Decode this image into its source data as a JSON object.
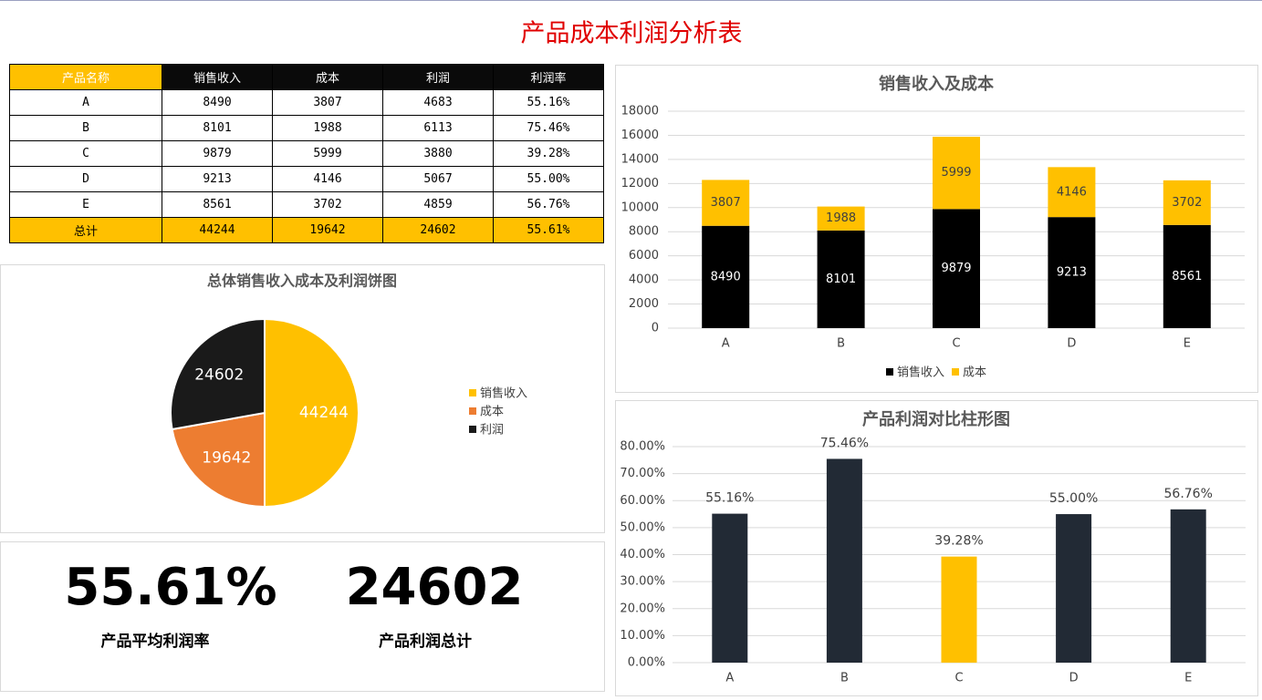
{
  "title": "产品成本利润分析表",
  "table": {
    "header": [
      "产品名称",
      "销售收入",
      "成本",
      "利润",
      "利润率"
    ],
    "rows": [
      [
        "A",
        8490,
        3807,
        4683,
        "55.16%"
      ],
      [
        "B",
        8101,
        1988,
        6113,
        "75.46%"
      ],
      [
        "C",
        9879,
        5999,
        3880,
        "39.28%"
      ],
      [
        "D",
        9213,
        4146,
        5067,
        "55.00%"
      ],
      [
        "E",
        8561,
        3702,
        4859,
        "56.76%"
      ]
    ],
    "total": [
      "总计",
      44244,
      19642,
      24602,
      "55.61%"
    ]
  },
  "kpis": [
    {
      "value": "55.61%",
      "label": "产品平均利润率"
    },
    {
      "value": "24602",
      "label": "产品利润总计"
    }
  ],
  "chart_data": [
    {
      "type": "pie",
      "title": "总体销售收入成本及利润饼图",
      "categories": [
        "销售收入",
        "成本",
        "利润"
      ],
      "values": [
        44244,
        19642,
        24602
      ],
      "colors": [
        "#ffc000",
        "#ed7d31",
        "#1a1a1a"
      ],
      "legend": "right"
    },
    {
      "type": "stacked_bar",
      "title": "销售收入及成本",
      "categories": [
        "A",
        "B",
        "C",
        "D",
        "E"
      ],
      "series": [
        {
          "name": "销售收入",
          "color": "#000000",
          "values": [
            8490,
            8101,
            9879,
            9213,
            8561
          ]
        },
        {
          "name": "成本",
          "color": "#ffc000",
          "values": [
            3807,
            1988,
            5999,
            4146,
            3702
          ]
        }
      ],
      "ylim": [
        0,
        18000
      ],
      "yticks": [
        0,
        2000,
        4000,
        6000,
        8000,
        10000,
        12000,
        14000,
        16000,
        18000
      ],
      "grid": true,
      "legend": "bottom"
    },
    {
      "type": "bar",
      "title": "产品利润对比柱形图",
      "categories": [
        "A",
        "B",
        "C",
        "D",
        "E"
      ],
      "values": [
        55.16,
        75.46,
        39.28,
        55.0,
        56.76
      ],
      "value_labels": [
        "55.16%",
        "75.46%",
        "39.28%",
        "55.00%",
        "56.76%"
      ],
      "colors": [
        "#222a35",
        "#222a35",
        "#ffc000",
        "#222a35",
        "#222a35"
      ],
      "ylim": [
        0,
        80
      ],
      "yticks": [
        {
          "value": 0,
          "label": "0.00%"
        },
        {
          "value": 10,
          "label": "10.00%"
        },
        {
          "value": 20,
          "label": "20.00%"
        },
        {
          "value": 30,
          "label": "30.00%"
        },
        {
          "value": 40,
          "label": "40.00%"
        },
        {
          "value": 50,
          "label": "50.00%"
        },
        {
          "value": 60,
          "label": "60.00%"
        },
        {
          "value": 70,
          "label": "70.00%"
        },
        {
          "value": 80,
          "label": "80.00%"
        }
      ],
      "grid": true
    }
  ]
}
